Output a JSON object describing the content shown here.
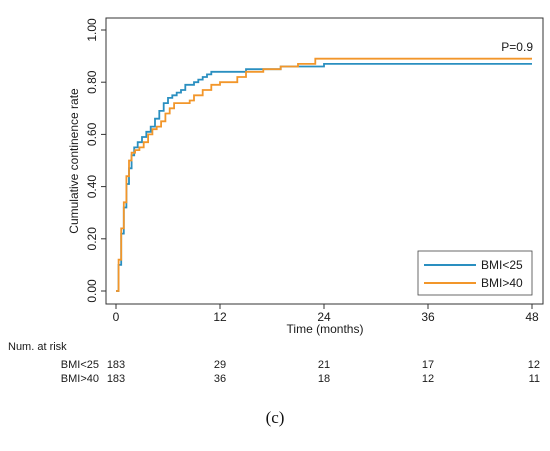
{
  "chart_data": {
    "type": "line",
    "subtype": "step (Kaplan-Meier cumulative incidence)",
    "xlabel": "Time (months)",
    "ylabel": "Cumulative continence rate",
    "xlim": [
      0,
      48
    ],
    "ylim": [
      0,
      1
    ],
    "xticks": [
      "0",
      "12",
      "24",
      "36",
      "48"
    ],
    "yticks": [
      "0.00",
      "0.20",
      "0.40",
      "0.60",
      "0.80",
      "1.00"
    ],
    "grid": false,
    "legend_position": "bottom-right",
    "annotation": "P=0.9",
    "series": [
      {
        "name": "BMI<25",
        "color": "#2a8fc0",
        "x": [
          0,
          0.3,
          0.6,
          0.9,
          1.2,
          1.5,
          1.8,
          2.1,
          2.5,
          3.0,
          3.5,
          4.0,
          4.5,
          5.0,
          5.5,
          6.0,
          6.5,
          7.0,
          7.5,
          8.0,
          9.0,
          9.5,
          10.0,
          10.5,
          11.0,
          12.0,
          13.0,
          15.0,
          17.0,
          19.0,
          24.0,
          48.0
        ],
        "y": [
          0.0,
          0.1,
          0.22,
          0.32,
          0.41,
          0.47,
          0.52,
          0.55,
          0.57,
          0.59,
          0.61,
          0.63,
          0.66,
          0.69,
          0.72,
          0.74,
          0.75,
          0.76,
          0.77,
          0.79,
          0.8,
          0.81,
          0.82,
          0.83,
          0.84,
          0.84,
          0.84,
          0.85,
          0.85,
          0.86,
          0.87,
          0.87
        ]
      },
      {
        "name": "BMI>40",
        "color": "#f2962a",
        "x": [
          0,
          0.3,
          0.6,
          0.9,
          1.2,
          1.5,
          1.8,
          2.2,
          2.7,
          3.2,
          3.7,
          4.2,
          4.7,
          5.2,
          5.7,
          6.2,
          6.7,
          7.5,
          8.5,
          9.0,
          10.0,
          11.0,
          12.0,
          14.0,
          15.0,
          17.0,
          19.0,
          21.0,
          23.0,
          48.0
        ],
        "y": [
          0.0,
          0.12,
          0.24,
          0.34,
          0.44,
          0.5,
          0.53,
          0.54,
          0.55,
          0.57,
          0.6,
          0.62,
          0.63,
          0.65,
          0.68,
          0.7,
          0.72,
          0.72,
          0.73,
          0.75,
          0.77,
          0.79,
          0.8,
          0.82,
          0.84,
          0.85,
          0.86,
          0.87,
          0.89,
          0.89
        ]
      }
    ],
    "risk_table": {
      "title": "Num. at risk",
      "times": [
        0,
        12,
        24,
        36,
        48
      ],
      "rows": [
        {
          "label": "BMI<25",
          "values": [
            "183",
            "29",
            "21",
            "17",
            "12"
          ]
        },
        {
          "label": "BMI>40",
          "values": [
            "183",
            "36",
            "18",
            "12",
            "11"
          ]
        }
      ]
    }
  },
  "caption": "(c)"
}
